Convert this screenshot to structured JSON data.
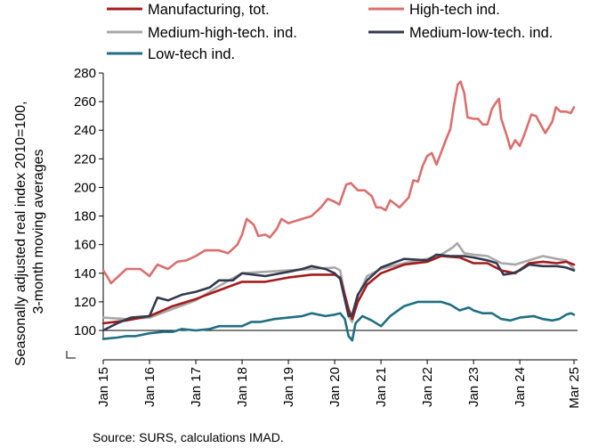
{
  "chart_data": {
    "type": "line",
    "title": "",
    "ylabel_lines": [
      "Seasonally adjusted real  index 2010=100,",
      "3-month moving averages"
    ],
    "source": "Source: SURS, calculations IMAD.",
    "ylim": [
      90,
      280
    ],
    "yticks": [
      100,
      120,
      140,
      160,
      180,
      200,
      220,
      240,
      260,
      280
    ],
    "reference_line": 100,
    "x_range": [
      2015.0,
      2025.17
    ],
    "xticks": [
      {
        "x": 2015,
        "label": "Jan 15"
      },
      {
        "x": 2016,
        "label": "Jan 16"
      },
      {
        "x": 2017,
        "label": "Jan 17"
      },
      {
        "x": 2018,
        "label": "Jan 18"
      },
      {
        "x": 2019,
        "label": "Jan 19"
      },
      {
        "x": 2020,
        "label": "Jan 20"
      },
      {
        "x": 2021,
        "label": "Jan 21"
      },
      {
        "x": 2022,
        "label": "Jan 22"
      },
      {
        "x": 2023,
        "label": "Jan 23"
      },
      {
        "x": 2024,
        "label": "Jan 24"
      },
      {
        "x": 2025.17,
        "label": "Mar 25"
      }
    ],
    "grid": false,
    "legend": "top",
    "series": [
      {
        "name": "Manufacturing, tot.",
        "color": "#a51c1c",
        "points": [
          [
            2015.0,
            105
          ],
          [
            2015.5,
            107
          ],
          [
            2016.0,
            110
          ],
          [
            2016.5,
            117
          ],
          [
            2017.0,
            122
          ],
          [
            2017.5,
            128
          ],
          [
            2018.0,
            134
          ],
          [
            2018.5,
            134
          ],
          [
            2019.0,
            137
          ],
          [
            2019.5,
            139
          ],
          [
            2020.0,
            139
          ],
          [
            2020.12,
            137
          ],
          [
            2020.3,
            115
          ],
          [
            2020.38,
            108
          ],
          [
            2020.5,
            120
          ],
          [
            2020.7,
            132
          ],
          [
            2021.0,
            140
          ],
          [
            2021.5,
            146
          ],
          [
            2022.0,
            148
          ],
          [
            2022.3,
            152
          ],
          [
            2022.7,
            151
          ],
          [
            2023.0,
            147
          ],
          [
            2023.3,
            147
          ],
          [
            2023.6,
            142
          ],
          [
            2023.9,
            140
          ],
          [
            2024.2,
            147
          ],
          [
            2024.5,
            148
          ],
          [
            2024.8,
            147
          ],
          [
            2025.0,
            148
          ],
          [
            2025.17,
            146
          ]
        ]
      },
      {
        "name": "High-tech ind.",
        "color": "#dc6e6e",
        "points": [
          [
            2015.0,
            142
          ],
          [
            2015.08,
            138
          ],
          [
            2015.17,
            133
          ],
          [
            2015.3,
            137
          ],
          [
            2015.5,
            143
          ],
          [
            2015.8,
            143
          ],
          [
            2016.0,
            138
          ],
          [
            2016.17,
            146
          ],
          [
            2016.4,
            143
          ],
          [
            2016.6,
            148
          ],
          [
            2016.8,
            149
          ],
          [
            2017.0,
            152
          ],
          [
            2017.2,
            156
          ],
          [
            2017.5,
            156
          ],
          [
            2017.7,
            154
          ],
          [
            2017.9,
            160
          ],
          [
            2018.0,
            167
          ],
          [
            2018.1,
            178
          ],
          [
            2018.25,
            174
          ],
          [
            2018.35,
            166
          ],
          [
            2018.5,
            167
          ],
          [
            2018.6,
            165
          ],
          [
            2018.75,
            171
          ],
          [
            2018.85,
            178
          ],
          [
            2019.0,
            175
          ],
          [
            2019.3,
            178
          ],
          [
            2019.5,
            180
          ],
          [
            2019.7,
            186
          ],
          [
            2019.85,
            192
          ],
          [
            2020.0,
            190
          ],
          [
            2020.1,
            188
          ],
          [
            2020.25,
            202
          ],
          [
            2020.35,
            203
          ],
          [
            2020.5,
            198
          ],
          [
            2020.65,
            198
          ],
          [
            2020.8,
            194
          ],
          [
            2020.9,
            186
          ],
          [
            2021.0,
            186
          ],
          [
            2021.1,
            184
          ],
          [
            2021.2,
            191
          ],
          [
            2021.4,
            186
          ],
          [
            2021.6,
            193
          ],
          [
            2021.7,
            205
          ],
          [
            2021.8,
            204
          ],
          [
            2021.9,
            215
          ],
          [
            2022.0,
            222
          ],
          [
            2022.1,
            224
          ],
          [
            2022.2,
            216
          ],
          [
            2022.4,
            233
          ],
          [
            2022.5,
            241
          ],
          [
            2022.58,
            258
          ],
          [
            2022.66,
            272
          ],
          [
            2022.72,
            274
          ],
          [
            2022.8,
            266
          ],
          [
            2022.87,
            249
          ],
          [
            2023.0,
            248
          ],
          [
            2023.1,
            248
          ],
          [
            2023.2,
            244
          ],
          [
            2023.3,
            244
          ],
          [
            2023.4,
            255
          ],
          [
            2023.5,
            260
          ],
          [
            2023.55,
            262
          ],
          [
            2023.6,
            248
          ],
          [
            2023.72,
            236
          ],
          [
            2023.8,
            227
          ],
          [
            2023.9,
            233
          ],
          [
            2024.0,
            229
          ],
          [
            2024.1,
            237
          ],
          [
            2024.25,
            251
          ],
          [
            2024.35,
            250
          ],
          [
            2024.45,
            244
          ],
          [
            2024.55,
            238
          ],
          [
            2024.7,
            246
          ],
          [
            2024.78,
            256
          ],
          [
            2024.88,
            253
          ],
          [
            2025.0,
            253
          ],
          [
            2025.1,
            252
          ],
          [
            2025.17,
            256
          ]
        ]
      },
      {
        "name": "Medium-high-tech. ind.",
        "color": "#a8a8a8",
        "points": [
          [
            2015.0,
            109
          ],
          [
            2015.5,
            108
          ],
          [
            2016.0,
            109
          ],
          [
            2016.5,
            115
          ],
          [
            2017.0,
            121
          ],
          [
            2017.5,
            131
          ],
          [
            2018.0,
            140
          ],
          [
            2018.5,
            141
          ],
          [
            2019.0,
            142
          ],
          [
            2019.5,
            143
          ],
          [
            2020.0,
            144
          ],
          [
            2020.12,
            142
          ],
          [
            2020.3,
            110
          ],
          [
            2020.38,
            106
          ],
          [
            2020.5,
            124
          ],
          [
            2020.7,
            138
          ],
          [
            2021.0,
            143
          ],
          [
            2021.5,
            147
          ],
          [
            2022.0,
            150
          ],
          [
            2022.3,
            153
          ],
          [
            2022.55,
            158
          ],
          [
            2022.65,
            161
          ],
          [
            2022.8,
            154
          ],
          [
            2023.0,
            153
          ],
          [
            2023.3,
            152
          ],
          [
            2023.6,
            147
          ],
          [
            2023.9,
            146
          ],
          [
            2024.2,
            149
          ],
          [
            2024.5,
            152
          ],
          [
            2024.8,
            150
          ],
          [
            2025.0,
            149
          ],
          [
            2025.17,
            143
          ]
        ]
      },
      {
        "name": "Medium-low-tech. ind.",
        "color": "#333a4e",
        "points": [
          [
            2015.0,
            100
          ],
          [
            2015.3,
            105
          ],
          [
            2015.6,
            109
          ],
          [
            2016.0,
            110
          ],
          [
            2016.17,
            123
          ],
          [
            2016.4,
            121
          ],
          [
            2016.7,
            125
          ],
          [
            2017.0,
            127
          ],
          [
            2017.3,
            130
          ],
          [
            2017.5,
            135
          ],
          [
            2017.8,
            135
          ],
          [
            2018.0,
            140
          ],
          [
            2018.5,
            138
          ],
          [
            2019.0,
            141
          ],
          [
            2019.3,
            143
          ],
          [
            2019.5,
            145
          ],
          [
            2019.8,
            143
          ],
          [
            2020.0,
            140
          ],
          [
            2020.12,
            136
          ],
          [
            2020.3,
            110
          ],
          [
            2020.38,
            111
          ],
          [
            2020.5,
            125
          ],
          [
            2020.7,
            135
          ],
          [
            2021.0,
            144
          ],
          [
            2021.5,
            150
          ],
          [
            2022.0,
            149
          ],
          [
            2022.2,
            153
          ],
          [
            2022.5,
            152
          ],
          [
            2022.8,
            152
          ],
          [
            2023.0,
            151
          ],
          [
            2023.3,
            149
          ],
          [
            2023.5,
            147
          ],
          [
            2023.65,
            139
          ],
          [
            2023.85,
            140
          ],
          [
            2024.0,
            142
          ],
          [
            2024.2,
            146
          ],
          [
            2024.5,
            145
          ],
          [
            2024.8,
            145
          ],
          [
            2025.0,
            144
          ],
          [
            2025.17,
            142
          ]
        ]
      },
      {
        "name": "Low-tech ind.",
        "color": "#1f6f82",
        "points": [
          [
            2015.0,
            94
          ],
          [
            2015.3,
            95
          ],
          [
            2015.5,
            96
          ],
          [
            2015.7,
            96
          ],
          [
            2016.0,
            98
          ],
          [
            2016.3,
            99
          ],
          [
            2016.5,
            99
          ],
          [
            2016.7,
            101
          ],
          [
            2017.0,
            100
          ],
          [
            2017.3,
            101
          ],
          [
            2017.5,
            103
          ],
          [
            2017.7,
            103
          ],
          [
            2018.0,
            103
          ],
          [
            2018.2,
            106
          ],
          [
            2018.4,
            106
          ],
          [
            2018.7,
            108
          ],
          [
            2019.0,
            109
          ],
          [
            2019.3,
            110
          ],
          [
            2019.5,
            112
          ],
          [
            2019.8,
            110
          ],
          [
            2020.0,
            111
          ],
          [
            2020.12,
            112
          ],
          [
            2020.22,
            108
          ],
          [
            2020.3,
            96
          ],
          [
            2020.38,
            93
          ],
          [
            2020.45,
            105
          ],
          [
            2020.6,
            110
          ],
          [
            2020.8,
            107
          ],
          [
            2021.0,
            103
          ],
          [
            2021.2,
            110
          ],
          [
            2021.5,
            117
          ],
          [
            2021.8,
            120
          ],
          [
            2022.0,
            120
          ],
          [
            2022.3,
            120
          ],
          [
            2022.5,
            118
          ],
          [
            2022.7,
            114
          ],
          [
            2022.9,
            116
          ],
          [
            2023.0,
            114
          ],
          [
            2023.2,
            112
          ],
          [
            2023.4,
            112
          ],
          [
            2023.6,
            108
          ],
          [
            2023.8,
            107
          ],
          [
            2024.0,
            109
          ],
          [
            2024.3,
            110
          ],
          [
            2024.5,
            108
          ],
          [
            2024.7,
            107
          ],
          [
            2024.85,
            108
          ],
          [
            2025.0,
            111
          ],
          [
            2025.1,
            112
          ],
          [
            2025.17,
            111
          ]
        ]
      }
    ]
  }
}
